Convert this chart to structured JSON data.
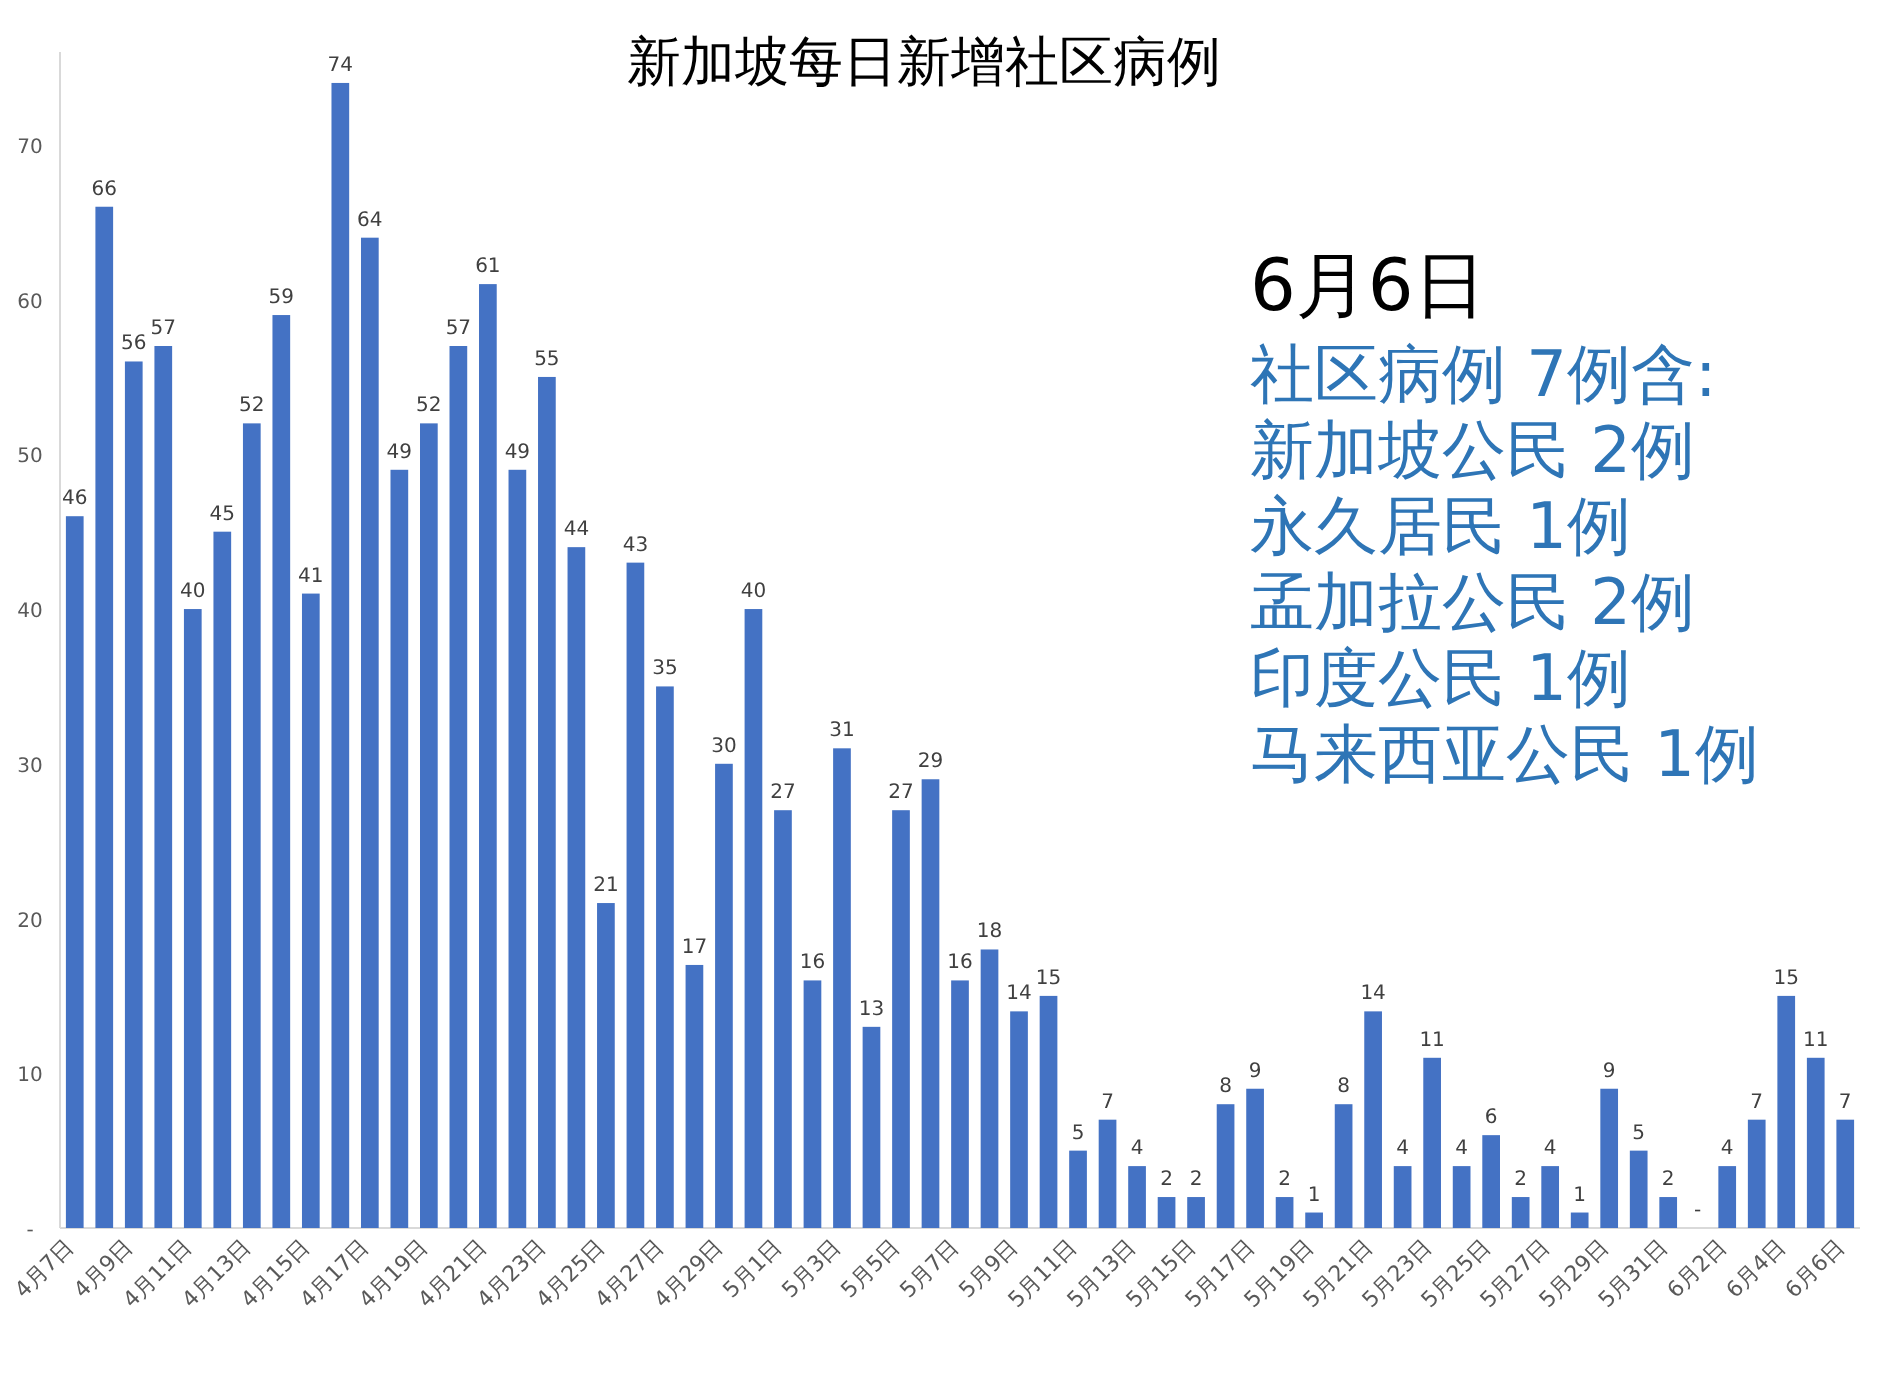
{
  "chart_data": {
    "type": "bar",
    "title": "新加坡每日新增社区病例",
    "categories": [
      "4月7日",
      null,
      "4月9日",
      null,
      "4月11日",
      null,
      "4月13日",
      null,
      "4月15日",
      null,
      "4月17日",
      null,
      "4月19日",
      null,
      "4月21日",
      null,
      "4月23日",
      null,
      "4月25日",
      null,
      "4月27日",
      null,
      "4月29日",
      null,
      "5月1日",
      null,
      "5月3日",
      null,
      "5月5日",
      null,
      "5月7日",
      null,
      "5月9日",
      null,
      "5月11日",
      null,
      "5月13日",
      null,
      "5月15日",
      null,
      "5月17日",
      null,
      "5月19日",
      null,
      "5月21日",
      null,
      "5月23日",
      null,
      "5月25日",
      null,
      "5月27日",
      null,
      "5月29日",
      null,
      "5月31日",
      null,
      "6月2日",
      null,
      "6月4日",
      null,
      "6月6日"
    ],
    "values": [
      46,
      66,
      56,
      57,
      40,
      45,
      52,
      59,
      41,
      74,
      64,
      49,
      52,
      57,
      61,
      49,
      55,
      44,
      21,
      43,
      35,
      17,
      30,
      40,
      27,
      16,
      31,
      13,
      27,
      29,
      16,
      18,
      14,
      15,
      5,
      7,
      4,
      2,
      2,
      8,
      9,
      2,
      1,
      8,
      14,
      4,
      11,
      4,
      6,
      2,
      4,
      1,
      9,
      5,
      2,
      0,
      4,
      7,
      15,
      11,
      7
    ],
    "value_labels": [
      "46",
      "66",
      "56",
      "57",
      "40",
      "45",
      "52",
      "59",
      "41",
      "74",
      "64",
      "49",
      "52",
      "57",
      "61",
      "49",
      "55",
      "44",
      "21",
      "43",
      "35",
      "17",
      "30",
      "40",
      "27",
      "16",
      "31",
      "13",
      "27",
      "29",
      "16",
      "18",
      "14",
      "15",
      "5",
      "7",
      "4",
      "2",
      "2",
      "8",
      "9",
      "2",
      "1",
      "8",
      "14",
      "4",
      "11",
      "4",
      "6",
      "2",
      "4",
      "1",
      "9",
      "5",
      "2",
      "-",
      "4",
      "7",
      "15",
      "11",
      "7"
    ],
    "color": "#4472c4",
    "yticks": [
      {
        "value": 0,
        "label": "-"
      },
      10,
      20,
      30,
      40,
      50,
      60,
      70
    ],
    "ylim": [
      0,
      76
    ],
    "grid": false,
    "annotations": [
      "6月6日",
      "社区病例 7例含:",
      "新加坡公民 2例",
      "永久居民 1例",
      "孟加拉公民 2例",
      "印度公民 1例",
      "马来西亚公民 1例"
    ]
  }
}
